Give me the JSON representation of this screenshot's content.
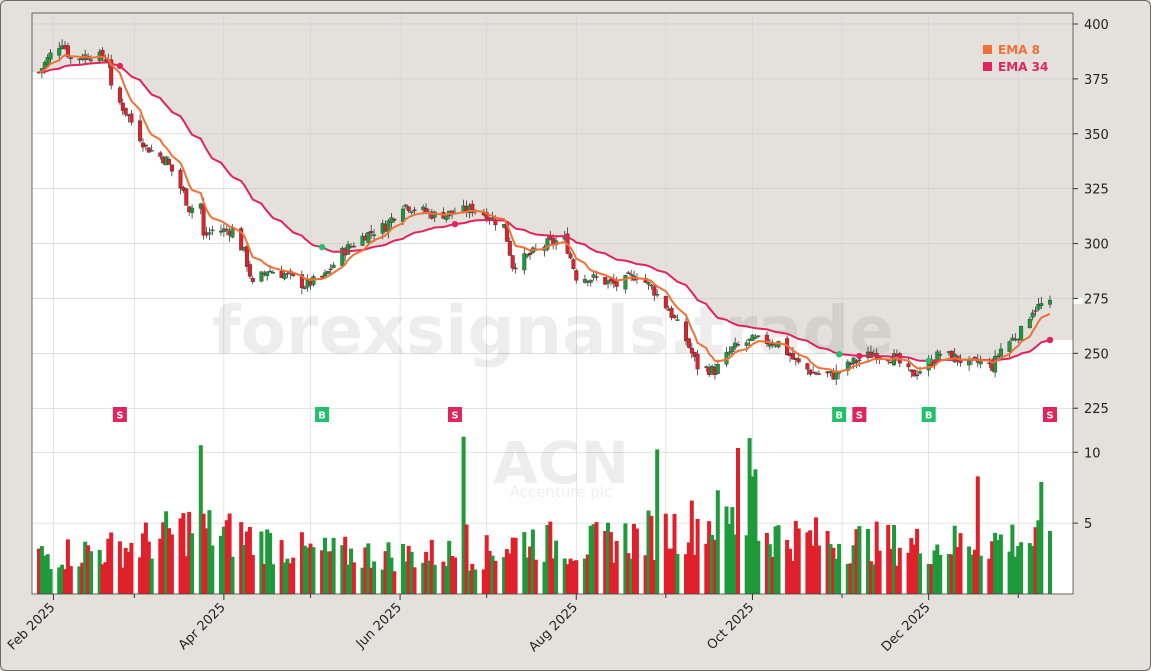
{
  "chart_data": {
    "type": "candlestick",
    "ticker": "ACN",
    "company": "Accenture plc",
    "watermark": "forexsignals.trade",
    "colors": {
      "up": "#1e9a3a",
      "down": "#e0202a",
      "ema_fast": "#f07035",
      "ema_slow": "#e0245e",
      "buy": "#22c06a",
      "sell": "#e0245e",
      "panel_bg": "#e4e1dc",
      "plot_bg": "#ffffff"
    },
    "legend": [
      {
        "label": "EMA 8",
        "color": "#f07035"
      },
      {
        "label": "EMA 34",
        "color": "#e0245e"
      }
    ],
    "price_axis": {
      "ylim": [
        216,
        405
      ],
      "ticks": [
        225,
        250,
        275,
        300,
        325,
        350,
        375,
        400
      ]
    },
    "volume_axis": {
      "ylim": [
        0,
        11.5
      ],
      "ticks": [
        5,
        10
      ]
    },
    "x_axis": {
      "start": "2025-01-27",
      "end": "2026-01-12",
      "labels": [
        {
          "date": "2025-02-01",
          "text": "Feb 2025"
        },
        {
          "date": "2025-04-01",
          "text": "Apr 2025"
        },
        {
          "date": "2025-06-01",
          "text": "Jun 2025"
        },
        {
          "date": "2025-08-01",
          "text": "Aug 2025"
        },
        {
          "date": "2025-10-01",
          "text": "Oct 2025"
        },
        {
          "date": "2025-12-01",
          "text": "Dec 2025"
        }
      ],
      "minor_ticks": [
        "2025-03-01",
        "2025-05-01",
        "2025-07-01",
        "2025-09-01",
        "2025-11-01",
        "2026-01-01"
      ]
    },
    "price_path": [
      [
        "2025-01-27",
        378
      ],
      [
        "2025-01-31",
        386
      ],
      [
        "2025-02-04",
        392
      ],
      [
        "2025-02-07",
        384
      ],
      [
        "2025-02-14",
        386
      ],
      [
        "2025-02-20",
        384
      ],
      [
        "2025-02-21",
        370
      ],
      [
        "2025-02-26",
        360
      ],
      [
        "2025-03-05",
        344
      ],
      [
        "2025-03-12",
        338
      ],
      [
        "2025-03-18",
        323
      ],
      [
        "2025-03-20",
        316
      ],
      [
        "2025-03-24",
        318
      ],
      [
        "2025-03-25",
        303
      ],
      [
        "2025-03-28",
        306
      ],
      [
        "2025-04-04",
        306
      ],
      [
        "2025-04-08",
        296
      ],
      [
        "2025-04-11",
        281
      ],
      [
        "2025-04-16",
        288
      ],
      [
        "2025-04-22",
        286
      ],
      [
        "2025-04-29",
        281
      ],
      [
        "2025-05-06",
        285
      ],
      [
        "2025-05-12",
        296
      ],
      [
        "2025-05-20",
        304
      ],
      [
        "2025-05-27",
        308
      ],
      [
        "2025-06-02",
        318
      ],
      [
        "2025-06-06",
        316
      ],
      [
        "2025-06-13",
        313
      ],
      [
        "2025-06-20",
        314
      ],
      [
        "2025-06-27",
        316
      ],
      [
        "2025-07-02",
        312
      ],
      [
        "2025-07-07",
        308
      ],
      [
        "2025-07-10",
        290
      ],
      [
        "2025-07-15",
        294
      ],
      [
        "2025-07-22",
        300
      ],
      [
        "2025-07-28",
        302
      ],
      [
        "2025-08-01",
        285
      ],
      [
        "2025-08-08",
        284
      ],
      [
        "2025-08-15",
        281
      ],
      [
        "2025-08-22",
        286
      ],
      [
        "2025-08-27",
        280
      ],
      [
        "2025-09-02",
        270
      ],
      [
        "2025-09-08",
        256
      ],
      [
        "2025-09-12",
        244
      ],
      [
        "2025-09-18",
        242
      ],
      [
        "2025-09-24",
        252
      ],
      [
        "2025-10-01",
        256
      ],
      [
        "2025-10-10",
        255
      ],
      [
        "2025-10-16",
        246
      ],
      [
        "2025-10-22",
        241
      ],
      [
        "2025-10-29",
        240
      ],
      [
        "2025-11-05",
        246
      ],
      [
        "2025-11-12",
        250
      ],
      [
        "2025-11-19",
        248
      ],
      [
        "2025-11-25",
        240
      ],
      [
        "2025-12-01",
        245
      ],
      [
        "2025-12-05",
        250
      ],
      [
        "2025-12-10",
        248
      ],
      [
        "2025-12-15",
        245
      ],
      [
        "2025-12-19",
        246
      ],
      [
        "2025-12-23",
        244
      ],
      [
        "2025-12-26",
        252
      ],
      [
        "2026-01-02",
        260
      ],
      [
        "2026-01-06",
        270
      ],
      [
        "2026-01-09",
        272
      ],
      [
        "2026-01-12",
        272
      ]
    ],
    "volume_levels": [
      [
        "2025-01-27",
        2.8
      ],
      [
        "2025-02-20",
        3.2
      ],
      [
        "2025-03-01",
        3.5
      ],
      [
        "2025-03-20",
        4.8
      ],
      [
        "2025-04-10",
        4.0
      ],
      [
        "2025-05-01",
        3.0
      ],
      [
        "2025-06-01",
        2.8
      ],
      [
        "2025-07-01",
        3.0
      ],
      [
        "2025-07-15",
        4.0
      ],
      [
        "2025-08-01",
        3.4
      ],
      [
        "2025-09-01",
        4.5
      ],
      [
        "2025-09-20",
        5.5
      ],
      [
        "2025-10-10",
        4.2
      ],
      [
        "2025-11-01",
        3.8
      ],
      [
        "2025-12-01",
        3.5
      ],
      [
        "2026-01-01",
        4.0
      ],
      [
        "2026-01-12",
        3.6
      ]
    ],
    "volume_spikes": [
      [
        "2025-03-23",
        11.2
      ],
      [
        "2025-03-24",
        10.5
      ],
      [
        "2025-06-23",
        11.1
      ],
      [
        "2025-06-24",
        4.9
      ],
      [
        "2025-09-26",
        10.3
      ],
      [
        "2025-09-30",
        11.0
      ],
      [
        "2025-10-01",
        8.3
      ],
      [
        "2025-10-02",
        8.8
      ],
      [
        "2025-08-29",
        10.2
      ],
      [
        "2025-08-30",
        7.5
      ],
      [
        "2025-12-18",
        8.3
      ],
      [
        "2026-01-09",
        7.9
      ]
    ],
    "signals": [
      {
        "date": "2025-02-23",
        "type": "S"
      },
      {
        "date": "2025-05-05",
        "type": "B"
      },
      {
        "date": "2025-06-20",
        "type": "S"
      },
      {
        "date": "2025-10-31",
        "type": "B"
      },
      {
        "date": "2025-11-07",
        "type": "S"
      },
      {
        "date": "2025-11-30",
        "type": "B"
      },
      {
        "date": "2026-01-12",
        "type": "S"
      }
    ]
  }
}
